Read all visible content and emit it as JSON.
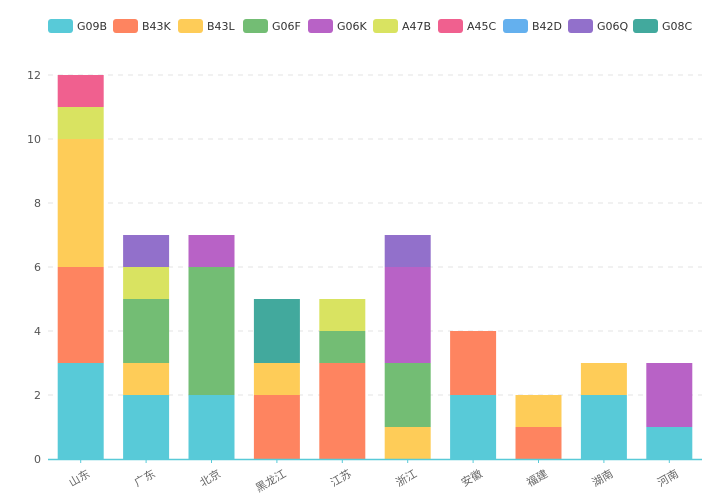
{
  "chart_data": {
    "type": "bar",
    "stacked": true,
    "categories": [
      "山东",
      "广东",
      "北京",
      "黑龙江",
      "江苏",
      "浙江",
      "安徽",
      "福建",
      "湖南",
      "河南"
    ],
    "series": [
      {
        "name": "G09B",
        "color": "#58CAD8",
        "values": [
          3,
          2,
          2,
          0,
          0,
          0,
          2,
          0,
          2,
          1
        ]
      },
      {
        "name": "B43K",
        "color": "#FE8460",
        "values": [
          3,
          0,
          0,
          2,
          3,
          0,
          2,
          1,
          0,
          0
        ]
      },
      {
        "name": "B43L",
        "color": "#FECC58",
        "values": [
          4,
          1,
          0,
          1,
          0,
          1,
          0,
          1,
          1,
          0
        ]
      },
      {
        "name": "G06F",
        "color": "#73BD74",
        "values": [
          0,
          2,
          4,
          0,
          1,
          2,
          0,
          0,
          0,
          0
        ]
      },
      {
        "name": "G06K",
        "color": "#B862C6",
        "values": [
          0,
          0,
          1,
          0,
          0,
          3,
          0,
          0,
          0,
          2
        ]
      },
      {
        "name": "A47B",
        "color": "#D9E361",
        "values": [
          1,
          1,
          0,
          0,
          1,
          0,
          0,
          0,
          0,
          0
        ]
      },
      {
        "name": "A45C",
        "color": "#F0608F",
        "values": [
          1,
          0,
          0,
          0,
          0,
          0,
          0,
          0,
          0,
          0
        ]
      },
      {
        "name": "B42D",
        "color": "#64B0EE",
        "values": [
          0,
          0,
          0,
          0,
          0,
          0,
          0,
          0,
          0,
          0
        ]
      },
      {
        "name": "G06Q",
        "color": "#9270CB",
        "values": [
          0,
          1,
          0,
          0,
          0,
          1,
          0,
          0,
          0,
          0
        ]
      },
      {
        "name": "G08C",
        "color": "#42A99D",
        "values": [
          0,
          0,
          0,
          2,
          0,
          0,
          0,
          0,
          0,
          0
        ]
      }
    ],
    "yticks": [
      0,
      2,
      4,
      6,
      8,
      10,
      12
    ],
    "ylim": [
      0,
      12
    ],
    "grid": true,
    "legend_position": "top"
  }
}
